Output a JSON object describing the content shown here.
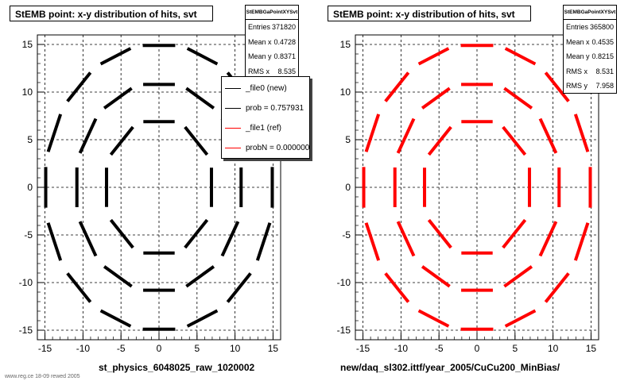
{
  "footer": "www.reg.ce 18-09 rewed 2005",
  "panels": [
    {
      "title": "StEMB point: x-y distribution of hits, svt",
      "xlabel": "st_physics_6048025_raw_1020002",
      "stats": {
        "name": "StEMBGaPointXYSvt",
        "rows": [
          {
            "label": "Entries",
            "value": "371820"
          },
          {
            "label": "Mean x",
            "value": "0.4728"
          },
          {
            "label": "Mean y",
            "value": "0.8371"
          },
          {
            "label": "RMS x",
            "value": "8.535"
          }
        ]
      },
      "legend": [
        {
          "text": "_file0 (new)",
          "color": "#000000"
        },
        {
          "text": "prob = 0.757931",
          "color": "#000000"
        },
        {
          "text": "_file1 (ref)",
          "color": "#ff0000"
        },
        {
          "text": "probN = 0.000000",
          "color": "#ff0000"
        }
      ]
    },
    {
      "title": "StEMB point: x-y distribution of hits, svt",
      "xlabel": "new/daq_sl302.ittf/year_2005/CuCu200_MinBias/",
      "stats": {
        "name": "StEMBGaPointXYSvt",
        "rows": [
          {
            "label": "Entries",
            "value": "365800"
          },
          {
            "label": "Mean x",
            "value": "0.4535"
          },
          {
            "label": "Mean y",
            "value": "0.8215"
          },
          {
            "label": "RMS x",
            "value": "8.531"
          },
          {
            "label": "RMS y",
            "value": "7.958"
          }
        ]
      },
      "legend": []
    }
  ],
  "chart_data": [
    {
      "type": "scatter",
      "title": "StEMB point: x-y distribution of hits, svt",
      "xlabel": "st_physics_6048025_raw_1020002",
      "ylabel": "",
      "xlim": [
        -16,
        16
      ],
      "ylim": [
        -16,
        16
      ],
      "xticks": [
        -15,
        -10,
        -5,
        0,
        5,
        10,
        15
      ],
      "yticks": [
        -15,
        -10,
        -5,
        0,
        5,
        10,
        15
      ],
      "grid": true,
      "series": [
        {
          "name": "_file0 (new)",
          "color": "#000000",
          "rings": [
            {
              "radius": 6.9,
              "ladders": 8
            },
            {
              "radius": 10.8,
              "ladders": 12
            },
            {
              "radius": 14.9,
              "ladders": 16
            }
          ]
        }
      ]
    },
    {
      "type": "scatter",
      "title": "StEMB point: x-y distribution of hits, svt",
      "xlabel": "new/daq_sl302.ittf/year_2005/CuCu200_MinBias/",
      "ylabel": "",
      "xlim": [
        -16,
        16
      ],
      "ylim": [
        -16,
        16
      ],
      "xticks": [
        -15,
        -10,
        -5,
        0,
        5,
        10,
        15
      ],
      "yticks": [
        -15,
        -10,
        -5,
        0,
        5,
        10,
        15
      ],
      "grid": true,
      "series": [
        {
          "color": "#ff0000",
          "rings": [
            {
              "radius": 6.9,
              "ladders": 8
            },
            {
              "radius": 10.8,
              "ladders": 12
            },
            {
              "radius": 14.9,
              "ladders": 16
            }
          ]
        }
      ]
    }
  ]
}
